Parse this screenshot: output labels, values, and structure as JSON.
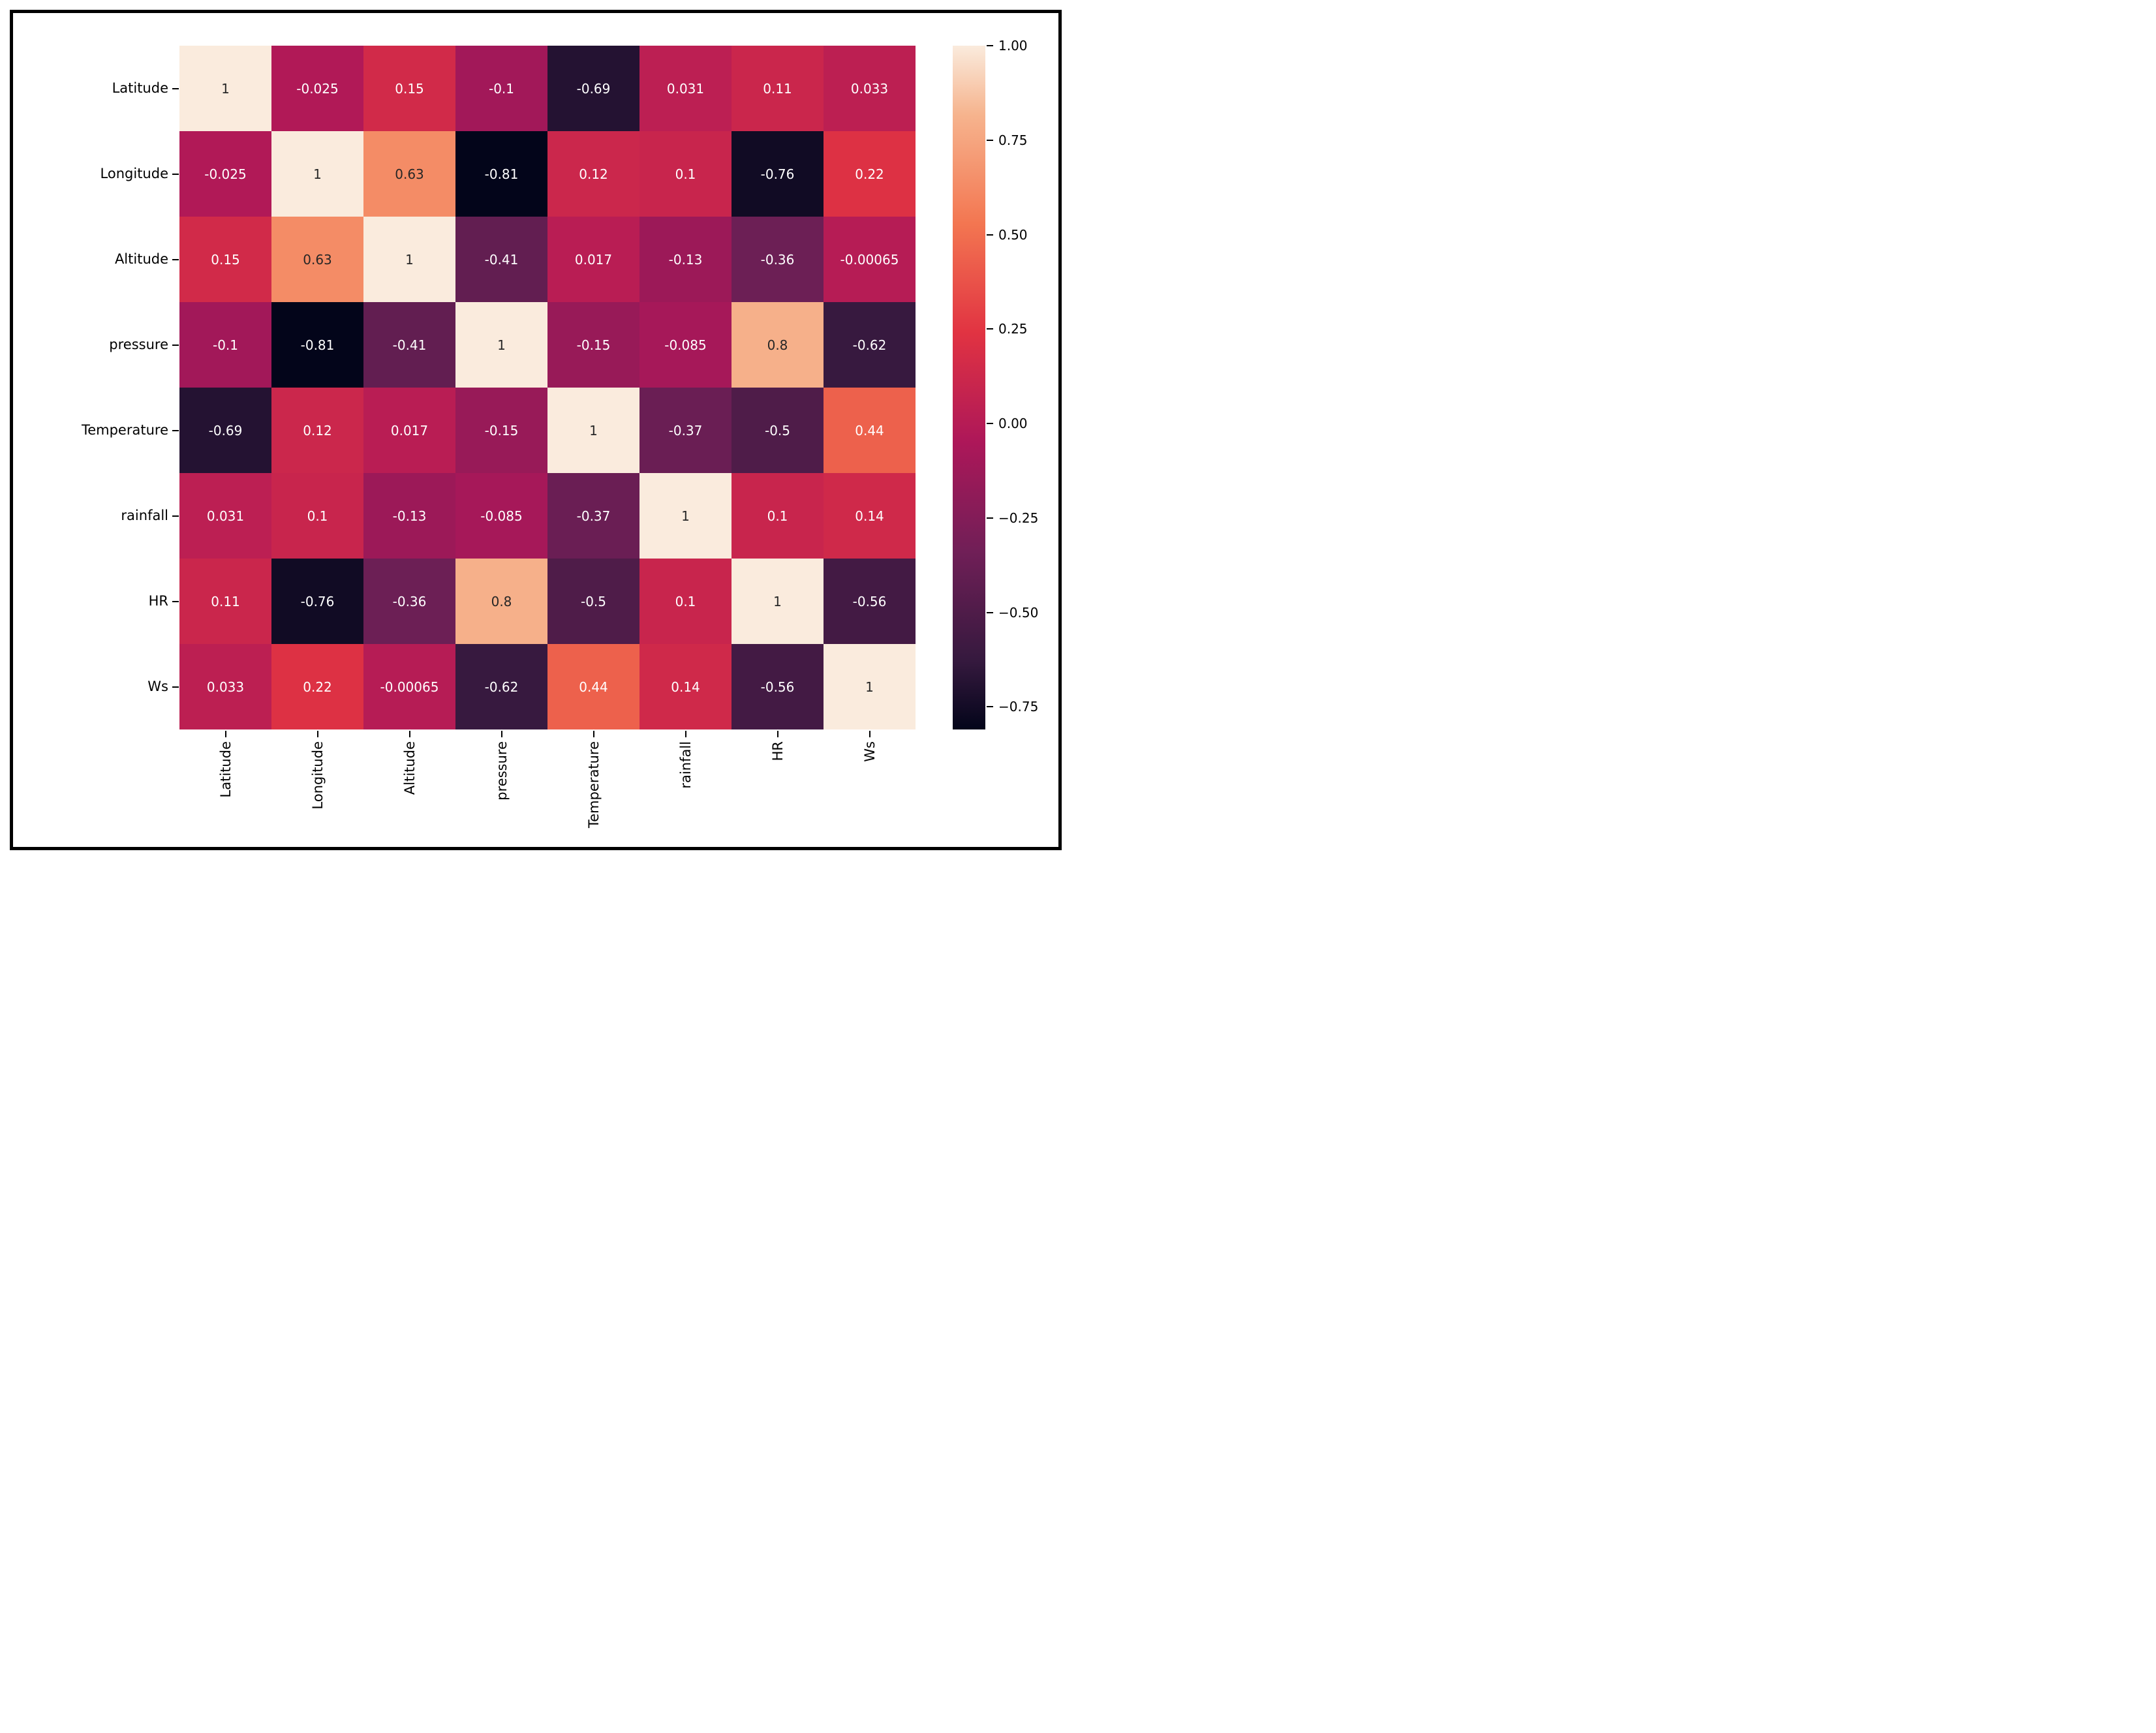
{
  "chart_data": {
    "type": "heatmap",
    "title": "",
    "categories": [
      "Latitude",
      "Longitude",
      "Altitude",
      "pressure",
      "Temperature",
      "rainfall",
      "HR",
      "Ws"
    ],
    "matrix": [
      [
        1,
        -0.025,
        0.15,
        -0.1,
        -0.69,
        0.031,
        0.11,
        0.033
      ],
      [
        -0.025,
        1,
        0.63,
        -0.81,
        0.12,
        0.1,
        -0.76,
        0.22
      ],
      [
        0.15,
        0.63,
        1,
        -0.41,
        0.017,
        -0.13,
        -0.36,
        -0.00065
      ],
      [
        -0.1,
        -0.81,
        -0.41,
        1,
        -0.15,
        -0.085,
        0.8,
        -0.62
      ],
      [
        -0.69,
        0.12,
        0.017,
        -0.15,
        1,
        -0.37,
        -0.5,
        0.44
      ],
      [
        0.031,
        0.1,
        -0.13,
        -0.085,
        -0.37,
        1,
        0.1,
        0.14
      ],
      [
        0.11,
        -0.76,
        -0.36,
        0.8,
        -0.5,
        0.1,
        1,
        -0.56
      ],
      [
        0.033,
        0.22,
        -0.00065,
        -0.62,
        0.44,
        0.14,
        -0.56,
        1
      ]
    ],
    "annotations": [
      [
        "1",
        "-0.025",
        "0.15",
        "-0.1",
        "-0.69",
        "0.031",
        "0.11",
        "0.033"
      ],
      [
        "-0.025",
        "1",
        "0.63",
        "-0.81",
        "0.12",
        "0.1",
        "-0.76",
        "0.22"
      ],
      [
        "0.15",
        "0.63",
        "1",
        "-0.41",
        "0.017",
        "-0.13",
        "-0.36",
        "-0.00065"
      ],
      [
        "-0.1",
        "-0.81",
        "-0.41",
        "1",
        "-0.15",
        "-0.085",
        "0.8",
        "-0.62"
      ],
      [
        "-0.69",
        "0.12",
        "0.017",
        "-0.15",
        "1",
        "-0.37",
        "-0.5",
        "0.44"
      ],
      [
        "0.031",
        "0.1",
        "-0.13",
        "-0.085",
        "-0.37",
        "1",
        "0.1",
        "0.14"
      ],
      [
        "0.11",
        "-0.76",
        "-0.36",
        "0.8",
        "-0.5",
        "0.1",
        "1",
        "-0.56"
      ],
      [
        "0.033",
        "0.22",
        "-0.00065",
        "-0.62",
        "0.44",
        "0.14",
        "-0.56",
        "1"
      ]
    ],
    "vmin": -0.81,
    "vmax": 1.0,
    "legend_position": "right",
    "colorbar_ticks": [
      "1.00",
      "0.75",
      "0.50",
      "0.25",
      "0.00",
      "−0.25",
      "−0.50",
      "−0.75"
    ],
    "colorbar_tick_values": [
      1.0,
      0.75,
      0.5,
      0.25,
      0.0,
      -0.25,
      -0.5,
      -0.75
    ],
    "colormap_name": "rocket",
    "colormap_stops": [
      {
        "t": 0.0,
        "color": "#03051A"
      },
      {
        "t": 0.1,
        "color": "#35193E"
      },
      {
        "t": 0.26,
        "color": "#701F57"
      },
      {
        "t": 0.42,
        "color": "#AD1759"
      },
      {
        "t": 0.58,
        "color": "#E13342"
      },
      {
        "t": 0.74,
        "color": "#F37651"
      },
      {
        "t": 0.9,
        "color": "#F6B48E"
      },
      {
        "t": 1.0,
        "color": "#FAEBDD"
      }
    ],
    "annotation_dark_text_color": "#262626",
    "annotation_light_text_color": "#ffffff",
    "frame_color": "#000000"
  }
}
